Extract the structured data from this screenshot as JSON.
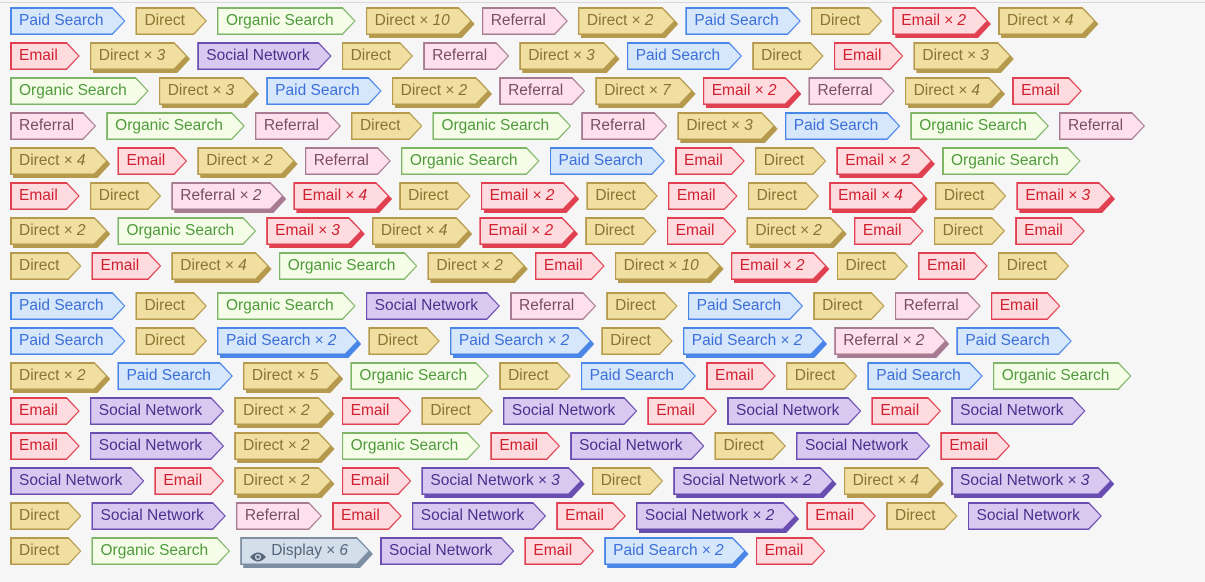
{
  "types": {
    "paid": {
      "label": "Paid Search",
      "bg": "#d6e6fb",
      "bd": "#4a86e8",
      "fg": "#3b6fd8"
    },
    "direct": {
      "label": "Direct",
      "bg": "#f0dfa0",
      "bd": "#b59a4e",
      "fg": "#8a7333"
    },
    "organic": {
      "label": "Organic Search",
      "bg": "#f5fde9",
      "bd": "#7fb567",
      "fg": "#4e9a3a"
    },
    "referral": {
      "label": "Referral",
      "bg": "#fde0ec",
      "bd": "#a77b91",
      "fg": "#7a4d63"
    },
    "email": {
      "label": "Email",
      "bg": "#fddbdf",
      "bd": "#e04050",
      "fg": "#d0202f"
    },
    "social": {
      "label": "Social Network",
      "bg": "#d9c9f1",
      "bd": "#6a4db0",
      "fg": "#4b2f8c"
    },
    "display": {
      "label": "Display",
      "bg": "#d3deeb",
      "bd": "#7d8ea3",
      "fg": "#56657a",
      "icon": "eye-icon"
    }
  },
  "rows": [
    [
      [
        "paid"
      ],
      [
        "direct"
      ],
      [
        "organic"
      ],
      [
        "direct",
        "× 10"
      ],
      [
        "referral"
      ],
      [
        "direct",
        "× 2"
      ],
      [
        "paid"
      ],
      [
        "direct"
      ],
      [
        "email",
        "× 2"
      ],
      [
        "direct",
        "× 4"
      ]
    ],
    [
      [
        "email"
      ],
      [
        "direct",
        "× 3"
      ],
      [
        "social"
      ],
      [
        "direct"
      ],
      [
        "referral"
      ],
      [
        "direct",
        "× 3"
      ],
      [
        "paid"
      ],
      [
        "direct"
      ],
      [
        "email"
      ],
      [
        "direct",
        "× 3"
      ]
    ],
    [
      [
        "organic"
      ],
      [
        "direct",
        "× 3"
      ],
      [
        "paid"
      ],
      [
        "direct",
        "× 2"
      ],
      [
        "referral"
      ],
      [
        "direct",
        "× 7"
      ],
      [
        "email",
        "× 2"
      ],
      [
        "referral"
      ],
      [
        "direct",
        "× 4"
      ],
      [
        "email"
      ]
    ],
    [
      [
        "referral"
      ],
      [
        "organic"
      ],
      [
        "referral"
      ],
      [
        "direct"
      ],
      [
        "organic"
      ],
      [
        "referral"
      ],
      [
        "direct",
        "× 3"
      ],
      [
        "paid"
      ],
      [
        "organic"
      ],
      [
        "referral"
      ]
    ],
    [
      [
        "direct",
        "× 4"
      ],
      [
        "email"
      ],
      [
        "direct",
        "× 2"
      ],
      [
        "referral"
      ],
      [
        "organic"
      ],
      [
        "paid"
      ],
      [
        "email"
      ],
      [
        "direct"
      ],
      [
        "email",
        "× 2"
      ],
      [
        "organic"
      ]
    ],
    [
      [
        "email"
      ],
      [
        "direct"
      ],
      [
        "referral",
        "× 2"
      ],
      [
        "email",
        "× 4"
      ],
      [
        "direct"
      ],
      [
        "email",
        "× 2"
      ],
      [
        "direct"
      ],
      [
        "email"
      ],
      [
        "direct"
      ],
      [
        "email",
        "× 4"
      ],
      [
        "direct"
      ],
      [
        "email",
        "× 3"
      ]
    ],
    [
      [
        "direct",
        "× 2"
      ],
      [
        "organic"
      ],
      [
        "email",
        "× 3"
      ],
      [
        "direct",
        "× 4"
      ],
      [
        "email",
        "× 2"
      ],
      [
        "direct"
      ],
      [
        "email"
      ],
      [
        "direct",
        "× 2"
      ],
      [
        "email"
      ],
      [
        "direct"
      ],
      [
        "email"
      ]
    ],
    [
      [
        "direct"
      ],
      [
        "email"
      ],
      [
        "direct",
        "× 4"
      ],
      [
        "organic"
      ],
      [
        "direct",
        "× 2"
      ],
      [
        "email"
      ],
      [
        "direct",
        "× 10"
      ],
      [
        "email",
        "× 2"
      ],
      [
        "direct"
      ],
      [
        "email"
      ],
      [
        "direct"
      ]
    ],
    [
      [
        "paid"
      ],
      [
        "direct"
      ],
      [
        "organic"
      ],
      [
        "social"
      ],
      [
        "referral"
      ],
      [
        "direct"
      ],
      [
        "paid"
      ],
      [
        "direct"
      ],
      [
        "referral"
      ],
      [
        "email"
      ]
    ],
    [
      [
        "paid"
      ],
      [
        "direct"
      ],
      [
        "paid",
        "× 2"
      ],
      [
        "direct"
      ],
      [
        "paid",
        "× 2"
      ],
      [
        "direct"
      ],
      [
        "paid",
        "× 2"
      ],
      [
        "referral",
        "× 2"
      ],
      [
        "paid"
      ]
    ],
    [
      [
        "direct",
        "× 2"
      ],
      [
        "paid"
      ],
      [
        "direct",
        "× 5"
      ],
      [
        "organic"
      ],
      [
        "direct"
      ],
      [
        "paid"
      ],
      [
        "email"
      ],
      [
        "direct"
      ],
      [
        "paid"
      ],
      [
        "organic"
      ]
    ],
    [
      [
        "email"
      ],
      [
        "social"
      ],
      [
        "direct",
        "× 2"
      ],
      [
        "email"
      ],
      [
        "direct"
      ],
      [
        "social"
      ],
      [
        "email"
      ],
      [
        "social"
      ],
      [
        "email"
      ],
      [
        "social"
      ]
    ],
    [
      [
        "email"
      ],
      [
        "social"
      ],
      [
        "direct",
        "× 2"
      ],
      [
        "organic"
      ],
      [
        "email"
      ],
      [
        "social"
      ],
      [
        "direct"
      ],
      [
        "social"
      ],
      [
        "email"
      ]
    ],
    [
      [
        "social"
      ],
      [
        "email"
      ],
      [
        "direct",
        "× 2"
      ],
      [
        "email"
      ],
      [
        "social",
        "× 3"
      ],
      [
        "direct"
      ],
      [
        "social",
        "× 2"
      ],
      [
        "direct",
        "× 4"
      ],
      [
        "social",
        "× 3"
      ]
    ],
    [
      [
        "direct"
      ],
      [
        "social"
      ],
      [
        "referral"
      ],
      [
        "email"
      ],
      [
        "social"
      ],
      [
        "email"
      ],
      [
        "social",
        "× 2"
      ],
      [
        "email"
      ],
      [
        "direct"
      ],
      [
        "social"
      ]
    ],
    [
      [
        "direct"
      ],
      [
        "organic"
      ],
      [
        "display",
        "× 6"
      ],
      [
        "social"
      ],
      [
        "email"
      ],
      [
        "paid",
        "× 2"
      ],
      [
        "email"
      ]
    ]
  ]
}
